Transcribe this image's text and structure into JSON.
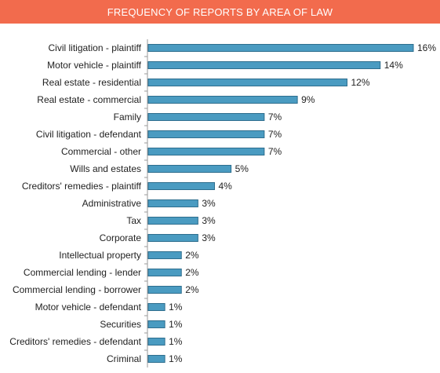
{
  "header": {
    "title": "FREQUENCY OF REPORTS BY AREA OF LAW",
    "bg_color": "#f26b4d"
  },
  "chart_data": {
    "type": "bar",
    "orientation": "horizontal",
    "title": "FREQUENCY OF REPORTS BY AREA OF LAW",
    "bar_color": "#4a9bc1",
    "categories": [
      "Civil litigation - plaintiff",
      "Motor vehicle - plaintiff",
      "Real estate - residential",
      "Real estate - commercial",
      "Family",
      "Civil litigation - defendant",
      "Commercial - other",
      "Wills and estates",
      "Creditors' remedies - plaintiff",
      "Administrative",
      "Tax",
      "Corporate",
      "Intellectual property",
      "Commercial lending - lender",
      "Commercial lending - borrower",
      "Motor vehicle - defendant",
      "Securities",
      "Creditors' remedies - defendant",
      "Criminal"
    ],
    "values": [
      16,
      14,
      12,
      9,
      7,
      7,
      7,
      5,
      4,
      3,
      3,
      3,
      2,
      2,
      2,
      1,
      1,
      1,
      1
    ],
    "value_labels": [
      "16%",
      "14%",
      "12%",
      "9%",
      "7%",
      "7%",
      "7%",
      "5%",
      "4%",
      "3%",
      "3%",
      "3%",
      "2%",
      "2%",
      "2%",
      "1%",
      "1%",
      "1%",
      "1%"
    ],
    "xlim": [
      0,
      16
    ],
    "grid": false,
    "legend": false
  }
}
